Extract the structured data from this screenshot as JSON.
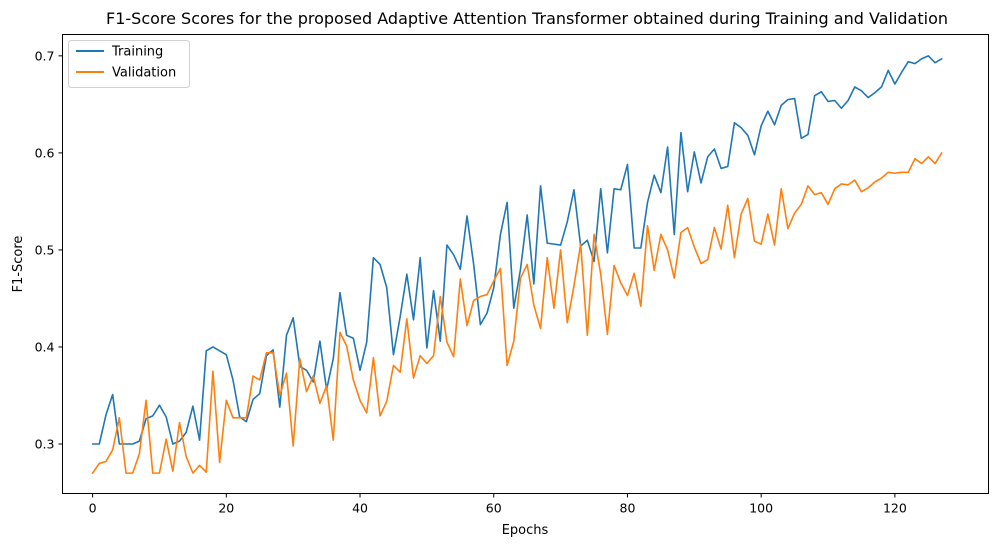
{
  "chart_data": {
    "type": "line",
    "title": "F1-Score Scores for the proposed Adaptive Attention Transformer obtained during Training and Validation",
    "xlabel": "Epochs",
    "ylabel": "F1-Score",
    "xlim": [
      -4.5,
      134
    ],
    "ylim": [
      0.249,
      0.722
    ],
    "xticks": [
      0,
      20,
      40,
      60,
      80,
      100,
      120
    ],
    "yticks": [
      0.3,
      0.4,
      0.5,
      0.6,
      0.7
    ],
    "xtick_labels": [
      "0",
      "20",
      "40",
      "60",
      "80",
      "100",
      "120"
    ],
    "ytick_labels": [
      "0.3",
      "0.4",
      "0.5",
      "0.6",
      "0.7"
    ],
    "grid": false,
    "legend_position": "top-left",
    "series": [
      {
        "name": "Training",
        "color": "#1f77b4",
        "values": [
          0.3,
          0.3,
          0.33,
          0.351,
          0.3,
          0.3,
          0.3,
          0.303,
          0.326,
          0.329,
          0.34,
          0.328,
          0.3,
          0.303,
          0.312,
          0.339,
          0.304,
          0.396,
          0.4,
          0.396,
          0.392,
          0.366,
          0.328,
          0.323,
          0.346,
          0.352,
          0.391,
          0.397,
          0.338,
          0.412,
          0.43,
          0.38,
          0.376,
          0.364,
          0.406,
          0.356,
          0.388,
          0.456,
          0.412,
          0.409,
          0.376,
          0.405,
          0.492,
          0.485,
          0.461,
          0.392,
          0.431,
          0.475,
          0.428,
          0.492,
          0.399,
          0.458,
          0.406,
          0.505,
          0.495,
          0.48,
          0.535,
          0.485,
          0.423,
          0.435,
          0.461,
          0.516,
          0.549,
          0.44,
          0.48,
          0.536,
          0.465,
          0.566,
          0.507,
          0.506,
          0.505,
          0.529,
          0.562,
          0.504,
          0.51,
          0.488,
          0.563,
          0.497,
          0.563,
          0.562,
          0.588,
          0.502,
          0.502,
          0.549,
          0.577,
          0.559,
          0.606,
          0.516,
          0.621,
          0.56,
          0.601,
          0.569,
          0.596,
          0.604,
          0.584,
          0.586,
          0.631,
          0.626,
          0.618,
          0.598,
          0.628,
          0.643,
          0.629,
          0.649,
          0.655,
          0.656,
          0.615,
          0.619,
          0.659,
          0.663,
          0.653,
          0.654,
          0.646,
          0.654,
          0.668,
          0.664,
          0.657,
          0.662,
          0.668,
          0.685,
          0.671,
          0.683,
          0.694,
          0.692,
          0.697,
          0.7,
          0.693,
          0.697
        ]
      },
      {
        "name": "Validation",
        "color": "#ff7f0e",
        "values": [
          0.27,
          0.28,
          0.282,
          0.294,
          0.327,
          0.27,
          0.27,
          0.29,
          0.345,
          0.27,
          0.27,
          0.305,
          0.272,
          0.322,
          0.287,
          0.27,
          0.278,
          0.271,
          0.375,
          0.281,
          0.345,
          0.327,
          0.327,
          0.327,
          0.37,
          0.366,
          0.394,
          0.394,
          0.35,
          0.373,
          0.298,
          0.388,
          0.354,
          0.37,
          0.342,
          0.36,
          0.304,
          0.415,
          0.401,
          0.366,
          0.345,
          0.332,
          0.389,
          0.329,
          0.344,
          0.381,
          0.374,
          0.429,
          0.368,
          0.391,
          0.383,
          0.391,
          0.452,
          0.405,
          0.39,
          0.47,
          0.422,
          0.448,
          0.452,
          0.454,
          0.468,
          0.481,
          0.381,
          0.406,
          0.471,
          0.485,
          0.443,
          0.419,
          0.492,
          0.44,
          0.5,
          0.425,
          0.463,
          0.506,
          0.412,
          0.516,
          0.475,
          0.413,
          0.484,
          0.466,
          0.453,
          0.476,
          0.442,
          0.525,
          0.479,
          0.516,
          0.5,
          0.471,
          0.518,
          0.523,
          0.503,
          0.486,
          0.49,
          0.523,
          0.501,
          0.546,
          0.492,
          0.537,
          0.553,
          0.509,
          0.506,
          0.537,
          0.505,
          0.563,
          0.522,
          0.538,
          0.547,
          0.566,
          0.557,
          0.559,
          0.547,
          0.563,
          0.568,
          0.567,
          0.572,
          0.56,
          0.564,
          0.57,
          0.574,
          0.58,
          0.579,
          0.58,
          0.58,
          0.594,
          0.589,
          0.596,
          0.589,
          0.6
        ]
      }
    ]
  }
}
